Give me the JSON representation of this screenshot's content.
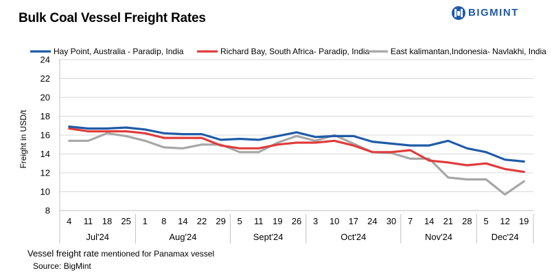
{
  "header": {
    "title": "Bulk Coal Vessel Freight Rates"
  },
  "brand": {
    "logo_text": "BIGMINT",
    "color": "#1e5aa8"
  },
  "footer": {
    "note_main": "Vessel freight rate",
    "note_rest": " mentioned for Panamax vessel",
    "source": "Source:  BigMint"
  },
  "chart_data": {
    "type": "line",
    "title": "Bulk Coal Vessel Freight Rates",
    "ylabel": "Freight  in USD/t",
    "xlabel": "",
    "ylim": [
      8,
      24
    ],
    "yticks": [
      8,
      10,
      12,
      14,
      16,
      18,
      20,
      22,
      24
    ],
    "grid": true,
    "legend_position": "top",
    "categories": [
      "4",
      "11",
      "18",
      "25",
      "1",
      "8",
      "14",
      "22",
      "29",
      "5",
      "11",
      "19",
      "26",
      "3",
      "10",
      "17",
      "24",
      "30",
      "7",
      "14",
      "21",
      "28",
      "5",
      "12",
      "19"
    ],
    "month_groups": [
      {
        "label": "Jul'24",
        "count": 4
      },
      {
        "label": "Aug'24",
        "count": 5
      },
      {
        "label": "Sept'24",
        "count": 4
      },
      {
        "label": "Oct'24",
        "count": 5
      },
      {
        "label": "Nov'24",
        "count": 4
      },
      {
        "label": "Dec'24",
        "count": 3
      }
    ],
    "series": [
      {
        "name": "Hay Point, Australia - Paradip, India",
        "color": "#1f5ba6",
        "values": [
          16.9,
          16.7,
          16.7,
          16.8,
          16.6,
          16.2,
          16.1,
          16.1,
          15.5,
          15.6,
          15.5,
          15.9,
          16.3,
          15.8,
          15.9,
          15.9,
          15.3,
          15.1,
          14.9,
          14.9,
          15.4,
          14.6,
          14.2,
          13.4,
          13.2
        ]
      },
      {
        "name": "Richard Bay, South Africa- Paradip, India",
        "color": "#e03c3c",
        "values": [
          16.7,
          16.4,
          16.4,
          16.4,
          16.2,
          15.7,
          15.7,
          15.7,
          14.9,
          14.6,
          14.6,
          15.0,
          15.2,
          15.2,
          15.4,
          14.9,
          14.2,
          14.2,
          14.4,
          13.3,
          13.1,
          12.8,
          13.0,
          12.4,
          12.1
        ]
      },
      {
        "name": "East kalimantan,Indonesia- Navlakhi, India",
        "color": "#a6a6a6",
        "values": [
          15.4,
          15.4,
          16.2,
          15.9,
          15.4,
          14.7,
          14.6,
          15.0,
          15.0,
          14.2,
          14.2,
          15.2,
          15.9,
          15.4,
          16.0,
          15.1,
          14.2,
          14.1,
          13.5,
          13.5,
          11.5,
          11.3,
          11.3,
          9.7,
          11.1
        ]
      }
    ]
  }
}
